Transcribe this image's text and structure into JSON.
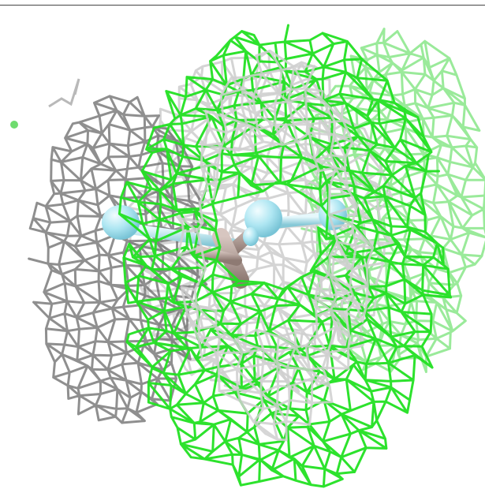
{
  "scene": {
    "subject": "molecular-surface-mesh",
    "colors": {
      "background": "#ffffff",
      "border": "#444444",
      "green_bright": "#22e022",
      "green_light": "#8fe88f",
      "grey_light": "#cfcfcf",
      "grey_dark": "#6a6a6a",
      "ligand_blue": "#aee6f2",
      "ligand_brown": "#b39a92"
    }
  }
}
